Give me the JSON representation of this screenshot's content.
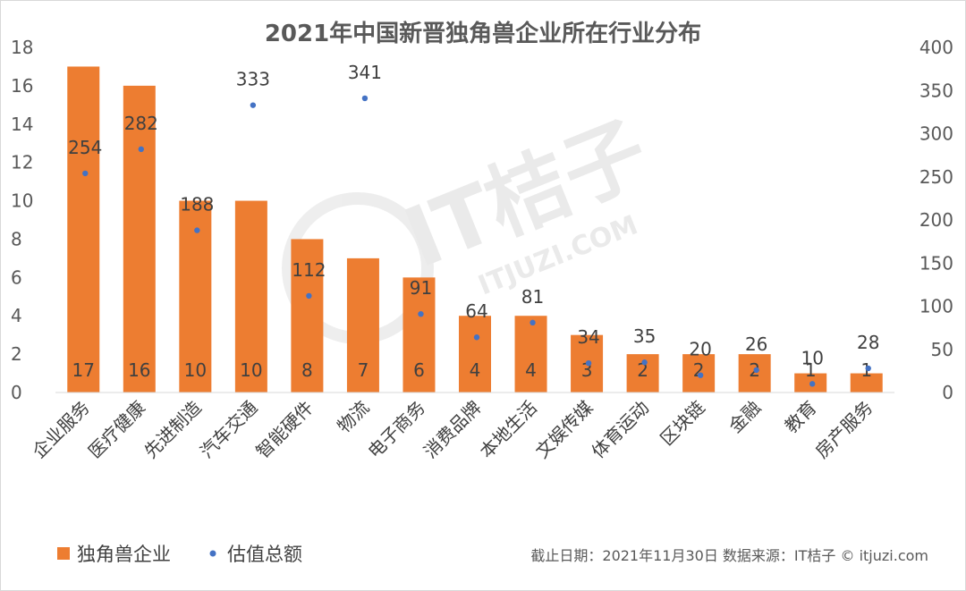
{
  "chart_data": {
    "type": "bar",
    "title": "2021年中国新晋独角兽企业所在行业分布",
    "categories": [
      "企业服务",
      "医疗健康",
      "先进制造",
      "汽车交通",
      "智能硬件",
      "物流",
      "电子商务",
      "消费品牌",
      "本地生活",
      "文娱传媒",
      "体育运动",
      "区块链",
      "金融",
      "教育",
      "房产服务"
    ],
    "series": [
      {
        "name": "独角兽企业",
        "type": "bar",
        "axis": "left",
        "color": "#ed7d31",
        "values": [
          17,
          16,
          10,
          10,
          8,
          7,
          6,
          4,
          4,
          3,
          2,
          2,
          2,
          1,
          1
        ]
      },
      {
        "name": "估值总额",
        "type": "scatter",
        "axis": "right",
        "color": "#4472c4",
        "values": [
          254,
          282,
          188,
          333,
          112,
          341,
          91,
          64,
          81,
          34,
          35,
          20,
          26,
          10,
          28
        ]
      }
    ],
    "y_left": {
      "min": 0,
      "max": 18,
      "ticks": [
        0,
        2,
        4,
        6,
        8,
        10,
        12,
        14,
        16,
        18
      ]
    },
    "y_right": {
      "min": 0,
      "max": 400,
      "ticks": [
        0,
        50,
        100,
        150,
        200,
        250,
        300,
        350,
        400
      ]
    },
    "grid": false,
    "legend_position": "bottom-left"
  },
  "footer": {
    "source": "截止日期：2021年11月30日   数据来源：IT桔子 © itjuzi.com"
  },
  "watermark": {
    "brand": "IT桔子",
    "site": "ITJUZI.COM"
  }
}
